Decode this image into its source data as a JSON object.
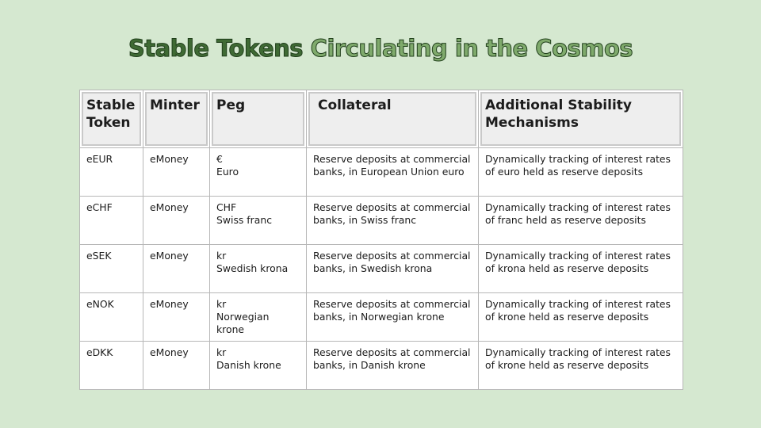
{
  "title": {
    "part1": "Stable Tokens",
    "part2": "Circulating in the Cosmos"
  },
  "table": {
    "headers": {
      "token": "Stable Token",
      "minter": "Minter",
      "peg": "Peg",
      "collateral": "Collateral",
      "stability": "Additional Stability Mechanisms"
    },
    "rows": [
      {
        "token": "eEUR",
        "minter": "eMoney",
        "peg_symbol": "€",
        "peg_name": "Euro",
        "collateral": "Reserve deposits at commercial banks, in European Union euro",
        "stability": "Dynamically tracking of interest rates of euro held as reserve deposits"
      },
      {
        "token": "eCHF",
        "minter": "eMoney",
        "peg_symbol": "CHF",
        "peg_name": "Swiss franc",
        "collateral": "Reserve deposits at commercial banks, in Swiss franc",
        "stability": "Dynamically tracking of interest rates of franc held as reserve deposits"
      },
      {
        "token": "eSEK",
        "minter": "eMoney",
        "peg_symbol": "kr",
        "peg_name": "Swedish krona",
        "collateral": "Reserve deposits at commercial banks, in Swedish krona",
        "stability": "Dynamically tracking of interest rates of krona held as reserve deposits"
      },
      {
        "token": "eNOK",
        "minter": "eMoney",
        "peg_symbol": "kr",
        "peg_name": "Norwegian krone",
        "collateral": "Reserve deposits at commercial banks, in Norwegian krone",
        "stability": "Dynamically tracking of interest rates of krone held as reserve deposits"
      },
      {
        "token": "eDKK",
        "minter": "eMoney",
        "peg_symbol": "kr",
        "peg_name": "Danish krone",
        "collateral": "Reserve deposits at commercial banks, in Danish krone",
        "stability": "Dynamically tracking of interest rates of krone held as reserve deposits"
      }
    ]
  }
}
